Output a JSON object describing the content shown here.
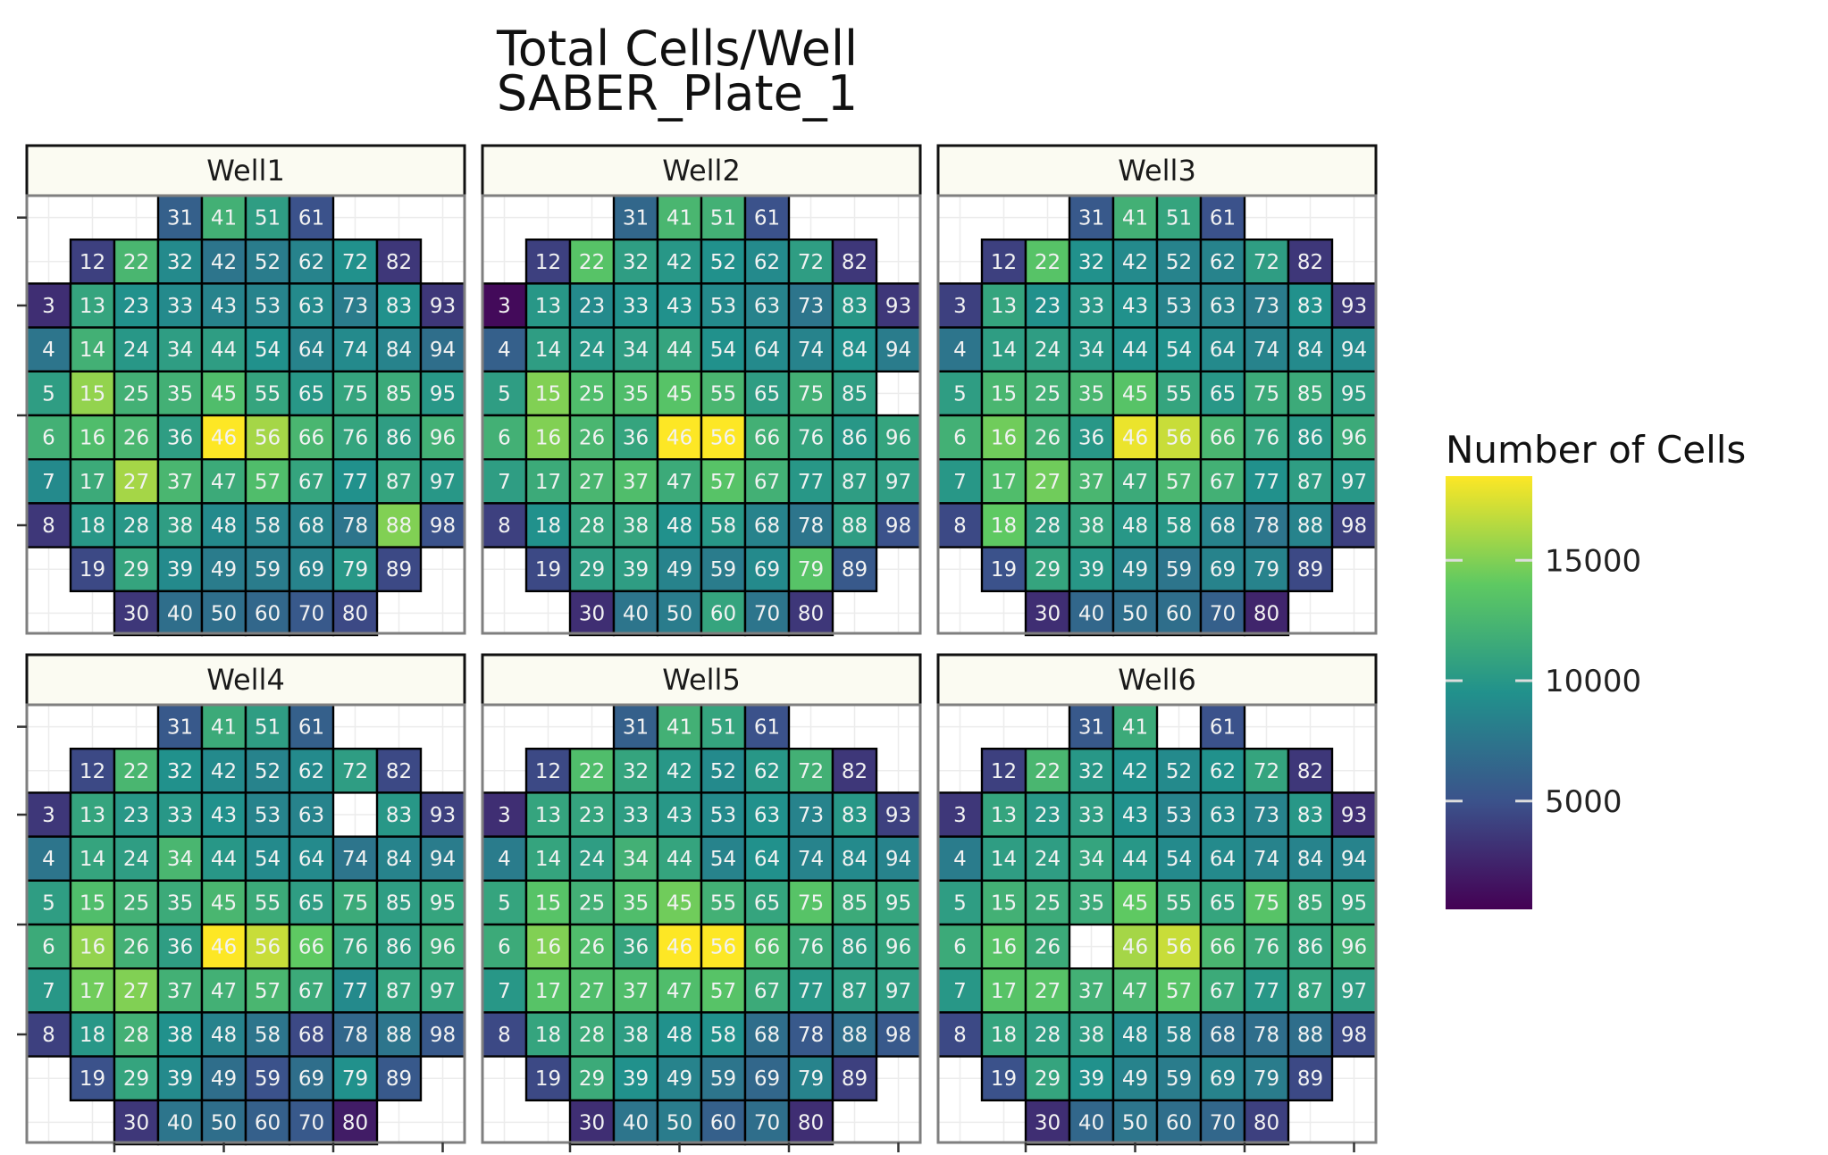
{
  "chart_data": {
    "type": "heatmap",
    "title": "Total Cells/Well",
    "subtitle": "SABER_Plate_1",
    "legend": {
      "title": "Number of Cells",
      "ticks": [
        5000,
        10000,
        15000
      ],
      "range": [
        500,
        18500
      ],
      "placement": "right"
    },
    "colormap": [
      "#440154",
      "#3b528b",
      "#21918c",
      "#5ec962",
      "#fde725"
    ],
    "layout": {
      "rows": [
        [
          31,
          41,
          51,
          61
        ],
        [
          12,
          22,
          32,
          42,
          52,
          62,
          72,
          82
        ],
        [
          3,
          13,
          23,
          33,
          43,
          53,
          63,
          73,
          83,
          93
        ],
        [
          4,
          14,
          24,
          34,
          44,
          54,
          64,
          74,
          84,
          94
        ],
        [
          5,
          15,
          25,
          35,
          45,
          55,
          65,
          75,
          85,
          95
        ],
        [
          6,
          16,
          26,
          36,
          46,
          56,
          66,
          76,
          86,
          96
        ],
        [
          7,
          17,
          27,
          37,
          47,
          57,
          67,
          77,
          87,
          97
        ],
        [
          8,
          18,
          28,
          38,
          48,
          58,
          68,
          78,
          88,
          98
        ],
        [
          19,
          29,
          39,
          49,
          59,
          69,
          79,
          89
        ],
        [
          30,
          40,
          50,
          60,
          70,
          80
        ]
      ]
    },
    "panels": [
      {
        "name": "Well1",
        "values": {
          "31": 6000,
          "41": 12000,
          "51": 10500,
          "61": 5000,
          "12": 4000,
          "22": 12500,
          "32": 9000,
          "42": 7500,
          "52": 8000,
          "62": 8500,
          "72": 9500,
          "82": 3500,
          "3": 3000,
          "13": 11000,
          "23": 9500,
          "33": 9000,
          "43": 8500,
          "53": 8500,
          "63": 9000,
          "73": 8000,
          "83": 9500,
          "93": 3500,
          "4": 7500,
          "14": 12000,
          "24": 10000,
          "34": 10500,
          "44": 10500,
          "54": 9500,
          "64": 8500,
          "74": 9000,
          "84": 8500,
          "94": 7000,
          "5": 10500,
          "15": 15500,
          "25": 12000,
          "35": 12000,
          "45": 13000,
          "55": 11000,
          "65": 10000,
          "75": 11000,
          "85": 11500,
          "95": 10000,
          "6": 12000,
          "16": 13000,
          "26": 12500,
          "36": 10500,
          "46": 18500,
          "56": 16000,
          "66": 12500,
          "76": 11000,
          "86": 10500,
          "96": 12000,
          "7": 9000,
          "17": 11500,
          "27": 16000,
          "37": 12500,
          "47": 11500,
          "57": 13000,
          "67": 11000,
          "77": 9500,
          "87": 11000,
          "97": 10000,
          "8": 3500,
          "18": 10000,
          "28": 10000,
          "38": 10500,
          "48": 9000,
          "58": 8500,
          "68": 8500,
          "78": 7500,
          "88": 15000,
          "98": 5000,
          "19": 4500,
          "29": 11000,
          "39": 9000,
          "49": 8000,
          "59": 8000,
          "69": 8500,
          "79": 10000,
          "89": 4500,
          "30": 3500,
          "40": 7000,
          "50": 7000,
          "60": 6500,
          "70": 5500,
          "80": 4500
        }
      },
      {
        "name": "Well2",
        "values": {
          "31": 6500,
          "41": 12500,
          "51": 12000,
          "61": 5000,
          "12": 4000,
          "22": 13500,
          "32": 10500,
          "42": 10000,
          "52": 9500,
          "62": 9000,
          "72": 10500,
          "82": 3500,
          "3": 1000,
          "13": 10000,
          "23": 9000,
          "33": 9500,
          "43": 9500,
          "53": 9000,
          "63": 8500,
          "73": 7500,
          "83": 10000,
          "93": 3500,
          "4": 6000,
          "14": 10500,
          "24": 10000,
          "34": 10500,
          "44": 11000,
          "54": 9500,
          "64": 9000,
          "74": 8500,
          "84": 9500,
          "94": 8000,
          "5": 10500,
          "15": 15000,
          "25": 13000,
          "35": 13000,
          "45": 13500,
          "55": 12500,
          "65": 10500,
          "75": 12000,
          "85": 10500,
          "6": 12000,
          "16": 15000,
          "26": 12500,
          "36": 11000,
          "46": 18500,
          "56": 18500,
          "66": 12000,
          "76": 11000,
          "86": 10000,
          "96": 11000,
          "7": 10500,
          "17": 11500,
          "27": 12500,
          "37": 13000,
          "47": 11500,
          "57": 13500,
          "67": 12000,
          "77": 10000,
          "87": 10500,
          "97": 10500,
          "8": 4000,
          "18": 9500,
          "28": 11000,
          "38": 11000,
          "48": 9500,
          "58": 10000,
          "68": 8500,
          "78": 7500,
          "88": 10500,
          "98": 5000,
          "19": 4500,
          "29": 10500,
          "39": 10500,
          "49": 8500,
          "59": 8000,
          "69": 9000,
          "79": 13500,
          "89": 5500,
          "30": 3000,
          "40": 7500,
          "50": 8000,
          "60": 11000,
          "70": 7500,
          "80": 3500
        }
      },
      {
        "name": "Well3",
        "values": {
          "31": 5500,
          "41": 12000,
          "51": 11000,
          "61": 5000,
          "12": 4000,
          "22": 13500,
          "32": 9500,
          "42": 9000,
          "52": 8500,
          "62": 8500,
          "72": 10500,
          "82": 3500,
          "3": 4000,
          "13": 11000,
          "23": 9500,
          "33": 10000,
          "43": 9500,
          "53": 8500,
          "63": 8500,
          "73": 8000,
          "83": 9500,
          "93": 3500,
          "4": 7500,
          "14": 10500,
          "24": 10500,
          "34": 10000,
          "44": 9500,
          "54": 9500,
          "64": 9000,
          "74": 8500,
          "84": 9000,
          "94": 9000,
          "5": 10500,
          "15": 12500,
          "25": 12000,
          "35": 12500,
          "45": 13500,
          "55": 11000,
          "65": 10000,
          "75": 11500,
          "85": 11500,
          "95": 10500,
          "6": 12000,
          "16": 14500,
          "26": 12000,
          "36": 10000,
          "46": 18000,
          "56": 17000,
          "66": 12500,
          "76": 11000,
          "86": 10000,
          "96": 11500,
          "7": 10000,
          "17": 13000,
          "27": 14500,
          "37": 12500,
          "47": 11500,
          "57": 12500,
          "67": 12000,
          "77": 9500,
          "87": 10500,
          "97": 10000,
          "8": 4500,
          "18": 14000,
          "28": 10500,
          "38": 11000,
          "48": 10000,
          "58": 10000,
          "68": 8500,
          "78": 7500,
          "88": 8500,
          "98": 4000,
          "19": 5000,
          "29": 11000,
          "39": 10000,
          "49": 8500,
          "59": 7500,
          "69": 8500,
          "79": 8500,
          "89": 4500,
          "30": 3000,
          "40": 6500,
          "50": 7000,
          "60": 7000,
          "70": 6000,
          "80": 2500
        }
      },
      {
        "name": "Well4",
        "values": {
          "31": 5500,
          "41": 11500,
          "51": 10500,
          "61": 6000,
          "12": 4500,
          "22": 12500,
          "32": 9500,
          "42": 9000,
          "52": 8500,
          "62": 9000,
          "72": 10500,
          "82": 4500,
          "3": 3500,
          "13": 11000,
          "23": 10000,
          "33": 10000,
          "43": 9500,
          "53": 8500,
          "63": 8500,
          "83": 10000,
          "93": 4000,
          "4": 7500,
          "14": 11000,
          "24": 10500,
          "34": 12500,
          "44": 10000,
          "54": 9000,
          "64": 9000,
          "74": 7500,
          "84": 8500,
          "94": 8000,
          "5": 10500,
          "15": 13000,
          "25": 12000,
          "35": 11500,
          "45": 12500,
          "55": 11500,
          "65": 10500,
          "75": 11500,
          "85": 10500,
          "95": 11000,
          "6": 11500,
          "16": 15500,
          "26": 12000,
          "36": 10500,
          "46": 18500,
          "56": 17000,
          "66": 14000,
          "76": 11000,
          "86": 10500,
          "96": 11500,
          "7": 10000,
          "17": 14500,
          "27": 15000,
          "37": 12000,
          "47": 12000,
          "57": 12500,
          "67": 11500,
          "77": 9000,
          "87": 11000,
          "97": 11000,
          "8": 4000,
          "18": 10000,
          "28": 12000,
          "38": 9500,
          "48": 8500,
          "58": 7500,
          "68": 4500,
          "78": 6500,
          "88": 7500,
          "98": 5500,
          "19": 5000,
          "29": 11000,
          "39": 9000,
          "49": 7000,
          "59": 5000,
          "69": 7000,
          "79": 9500,
          "89": 5500,
          "30": 3500,
          "40": 7500,
          "50": 7000,
          "60": 6000,
          "70": 5500,
          "80": 2000
        }
      },
      {
        "name": "Well5",
        "values": {
          "31": 6000,
          "41": 12000,
          "51": 11000,
          "61": 5000,
          "12": 4500,
          "22": 13000,
          "32": 11000,
          "42": 10000,
          "52": 9000,
          "62": 10000,
          "72": 12000,
          "82": 3500,
          "3": 3000,
          "13": 11000,
          "23": 11000,
          "33": 10500,
          "43": 10000,
          "53": 9000,
          "63": 9500,
          "73": 8500,
          "83": 10000,
          "93": 4000,
          "4": 8000,
          "14": 11000,
          "24": 10500,
          "34": 12000,
          "44": 11000,
          "54": 8500,
          "64": 9500,
          "74": 8500,
          "84": 9000,
          "94": 8500,
          "5": 11000,
          "15": 13500,
          "25": 12000,
          "35": 13000,
          "45": 14500,
          "55": 12000,
          "65": 11000,
          "75": 13500,
          "85": 11500,
          "95": 11000,
          "6": 11500,
          "16": 15000,
          "26": 13000,
          "36": 11000,
          "46": 18500,
          "56": 18500,
          "66": 13000,
          "76": 11500,
          "86": 10500,
          "96": 11000,
          "7": 10000,
          "17": 13500,
          "27": 13000,
          "37": 13000,
          "47": 13000,
          "57": 13500,
          "67": 11500,
          "77": 10000,
          "87": 10500,
          "97": 10500,
          "8": 4500,
          "18": 11000,
          "28": 11500,
          "38": 10500,
          "48": 9500,
          "58": 9500,
          "68": 7000,
          "78": 5500,
          "88": 7000,
          "98": 5500,
          "19": 4500,
          "29": 11500,
          "39": 9500,
          "49": 8500,
          "59": 7500,
          "69": 6500,
          "79": 8500,
          "89": 4000,
          "30": 3000,
          "40": 7500,
          "50": 8000,
          "60": 6000,
          "70": 7000,
          "80": 3000
        }
      },
      {
        "name": "Well6",
        "values": {
          "31": 5500,
          "41": 11500,
          "61": 5000,
          "12": 4000,
          "22": 12500,
          "32": 10000,
          "42": 9500,
          "52": 9000,
          "62": 9500,
          "72": 11000,
          "82": 3500,
          "3": 3500,
          "13": 11000,
          "23": 10000,
          "33": 10500,
          "43": 9500,
          "53": 8500,
          "63": 9000,
          "73": 8500,
          "83": 10000,
          "93": 3000,
          "4": 8000,
          "14": 10500,
          "24": 10500,
          "34": 11000,
          "44": 10000,
          "54": 9000,
          "64": 9000,
          "74": 8500,
          "84": 8500,
          "94": 8500,
          "5": 10500,
          "15": 12000,
          "25": 11500,
          "35": 11500,
          "45": 14000,
          "55": 11500,
          "65": 11000,
          "75": 13500,
          "85": 11500,
          "95": 11000,
          "6": 11500,
          "16": 13500,
          "26": 11500,
          "46": 16000,
          "56": 17000,
          "66": 12500,
          "76": 11500,
          "86": 11000,
          "96": 12000,
          "7": 10000,
          "17": 13500,
          "27": 13500,
          "37": 12000,
          "47": 12500,
          "57": 13500,
          "67": 11500,
          "77": 10000,
          "87": 11000,
          "97": 10500,
          "8": 4500,
          "18": 11000,
          "28": 10500,
          "38": 10500,
          "48": 9000,
          "58": 8500,
          "68": 7000,
          "78": 7000,
          "88": 7000,
          "98": 4500,
          "19": 5000,
          "29": 11000,
          "39": 9500,
          "49": 8500,
          "59": 8000,
          "69": 8500,
          "79": 8000,
          "89": 4500,
          "30": 3000,
          "40": 6500,
          "50": 7500,
          "60": 7000,
          "70": 6500,
          "80": 4000
        }
      }
    ]
  }
}
